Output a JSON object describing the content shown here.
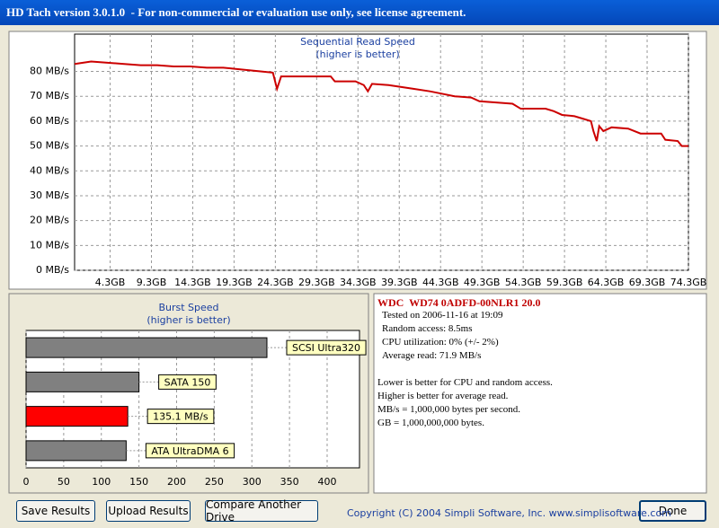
{
  "window": {
    "title": "HD Tach version 3.0.1.0  - For non-commercial or evaluation use only, see license agreement."
  },
  "chart_data": [
    {
      "type": "line",
      "title": "Sequential Read Speed",
      "subtitle": "(higher is better)",
      "color": "#cc0000",
      "grid": true,
      "x": [
        0,
        2,
        4,
        6,
        8,
        10,
        12,
        14,
        16,
        18,
        19.5,
        21,
        22.5,
        24,
        24.5,
        25,
        27,
        29,
        31,
        31.5,
        34,
        35,
        35.5,
        36,
        38,
        39,
        41,
        43,
        44.5,
        46,
        48,
        49,
        51,
        53,
        54,
        57,
        58,
        59,
        60.5,
        61.5,
        62.5,
        62.8,
        63.2,
        63.5,
        64,
        65,
        67,
        68.5,
        71,
        71.5,
        73,
        73.5,
        74.3
      ],
      "values": [
        83,
        84,
        83.5,
        83,
        82.5,
        82.5,
        82,
        82,
        81.5,
        81.5,
        81,
        80.5,
        80,
        79.5,
        73,
        78,
        78,
        78,
        78,
        76,
        76,
        74.5,
        72,
        75,
        74.5,
        74,
        73,
        72,
        71,
        70,
        69.5,
        68,
        67.5,
        67,
        65,
        65,
        64,
        62.5,
        62,
        61,
        60,
        56,
        52,
        58,
        56,
        57.5,
        57,
        55,
        55,
        52.5,
        52,
        50,
        50
      ],
      "xlim": [
        0,
        74.3
      ],
      "xticks": [
        {
          "value": 4.3,
          "label": "4.3GB"
        },
        {
          "value": 9.3,
          "label": "9.3GB"
        },
        {
          "value": 14.3,
          "label": "14.3GB"
        },
        {
          "value": 19.3,
          "label": "19.3GB"
        },
        {
          "value": 24.3,
          "label": "24.3GB"
        },
        {
          "value": 29.3,
          "label": "29.3GB"
        },
        {
          "value": 34.3,
          "label": "34.3GB"
        },
        {
          "value": 39.3,
          "label": "39.3GB"
        },
        {
          "value": 44.3,
          "label": "44.3GB"
        },
        {
          "value": 49.3,
          "label": "49.3GB"
        },
        {
          "value": 54.3,
          "label": "54.3GB"
        },
        {
          "value": 59.3,
          "label": "59.3GB"
        },
        {
          "value": 64.3,
          "label": "64.3GB"
        },
        {
          "value": 69.3,
          "label": "69.3GB"
        },
        {
          "value": 74.3,
          "label": "74.3GB"
        }
      ],
      "ylim": [
        0,
        95
      ],
      "yticks": [
        {
          "value": 0,
          "label": "0 MB/s"
        },
        {
          "value": 10,
          "label": "10 MB/s"
        },
        {
          "value": 20,
          "label": "20 MB/s"
        },
        {
          "value": 30,
          "label": "30 MB/s"
        },
        {
          "value": 40,
          "label": "40 MB/s"
        },
        {
          "value": 50,
          "label": "50 MB/s"
        },
        {
          "value": 60,
          "label": "60 MB/s"
        },
        {
          "value": 70,
          "label": "70 MB/s"
        },
        {
          "value": 80,
          "label": "80 MB/s"
        }
      ]
    },
    {
      "type": "barh",
      "title": "Burst Speed",
      "subtitle": "(higher is better)",
      "grid": true,
      "categories": [
        "SCSI Ultra320",
        "SATA 150",
        null,
        "ATA UltraDMA 6"
      ],
      "values": [
        320,
        150,
        135.1,
        133
      ],
      "value_labels": [
        null,
        null,
        "135.1 MB/s",
        null
      ],
      "colors": [
        "#808080",
        "#808080",
        "#ff0000",
        "#808080"
      ],
      "xlim": [
        0,
        443
      ],
      "xticks": [
        0,
        50,
        100,
        150,
        200,
        250,
        300,
        350,
        400
      ]
    }
  ],
  "info": {
    "title": "WDC  WD74 0ADFD-00NLR1 20.0",
    "details": [
      "Tested on 2006-11-16 at 19:09",
      "Random access: 8.5ms",
      "CPU utilization: 0% (+/- 2%)",
      "Average read: 71.9 MB/s"
    ],
    "notes": [
      "Lower is better for CPU and random access.",
      "Higher is better for average read.",
      "MB/s = 1,000,000 bytes per second.",
      "GB = 1,000,000,000 bytes."
    ]
  },
  "buttons": [
    "Save Results",
    "Upload Results",
    "Compare Another Drive",
    "Done"
  ],
  "copyright": "Copyright (C) 2004 Simpli Software, Inc. www.simplisoftware.com"
}
